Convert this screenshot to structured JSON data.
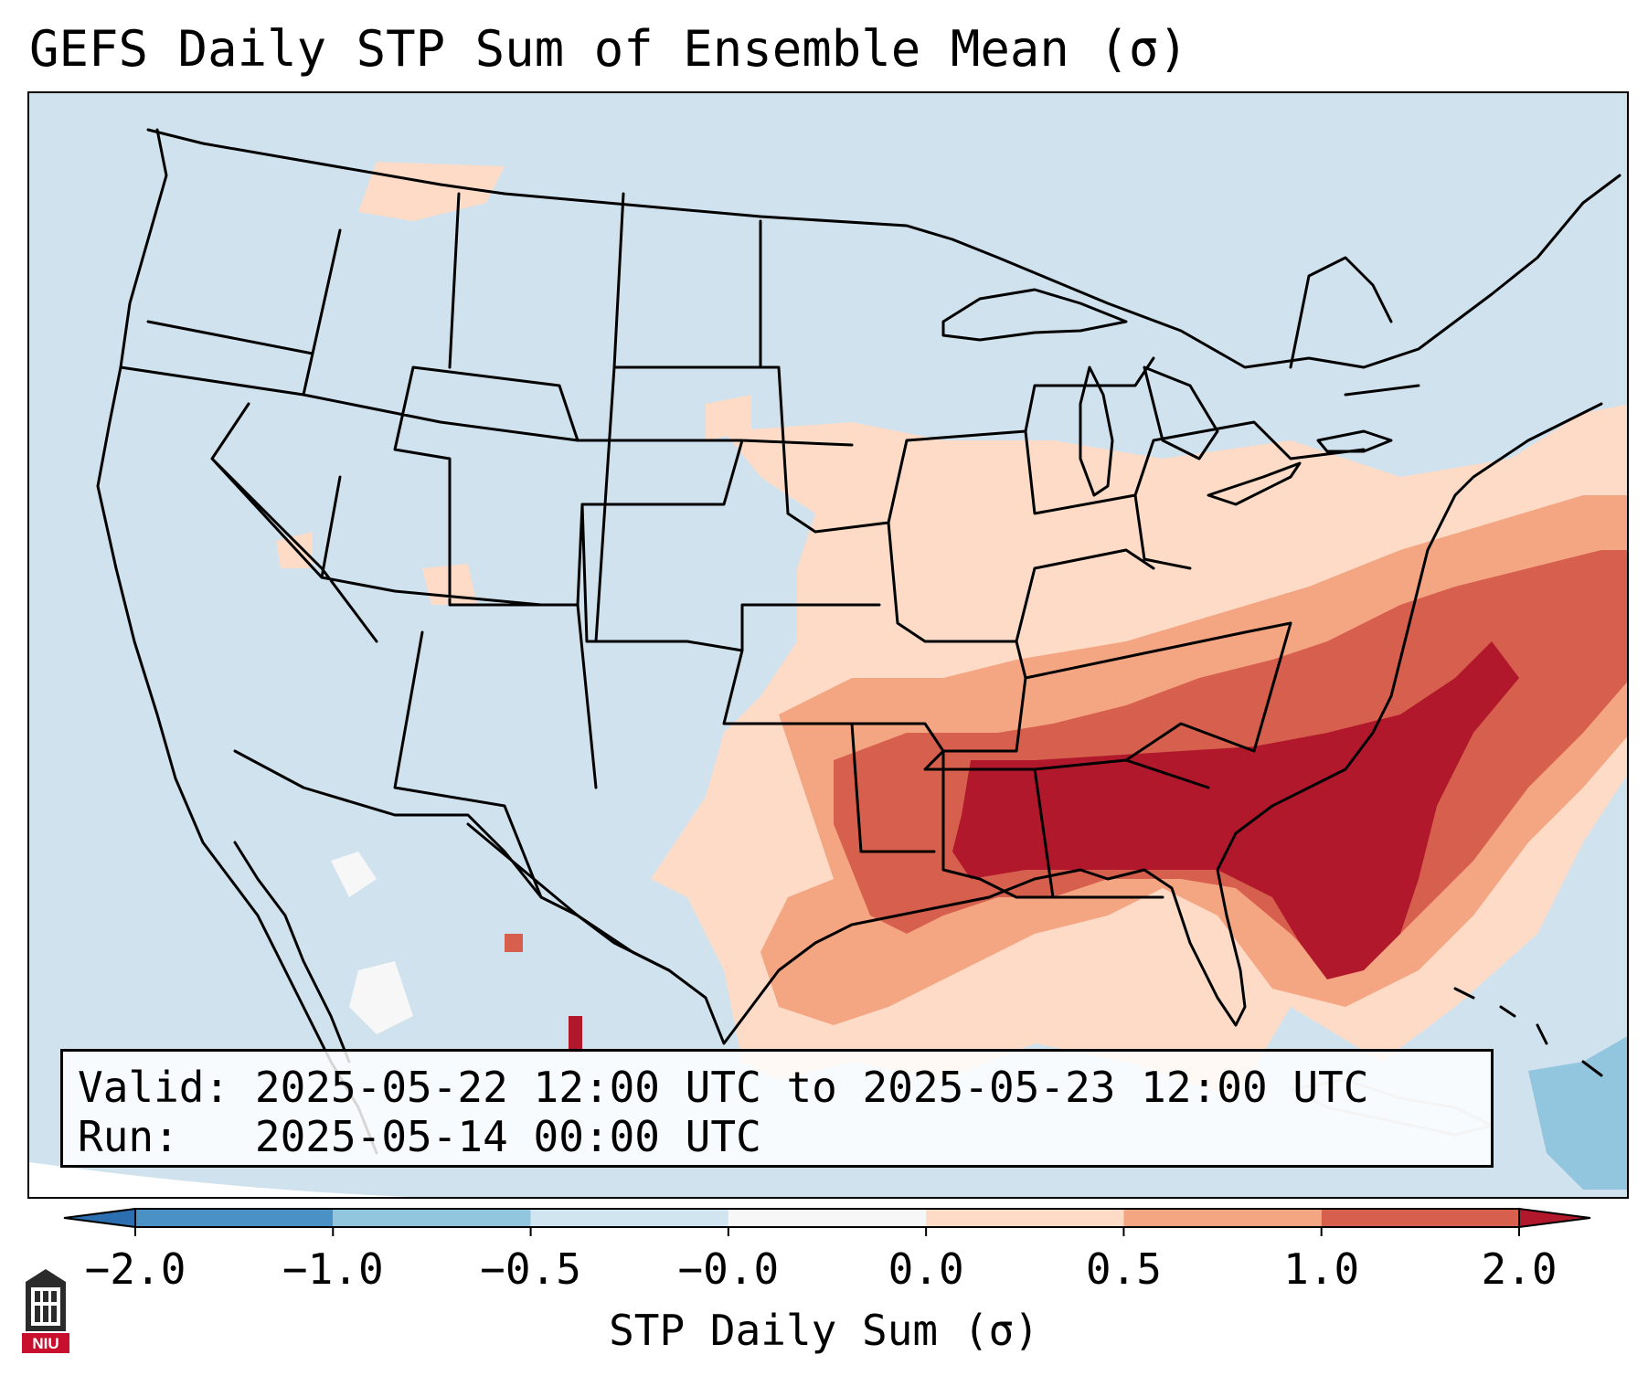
{
  "title": "GEFS Daily STP Sum of Ensemble Mean (σ)",
  "info": {
    "valid_label": "Valid:",
    "valid_value": "2025-05-22 12:00 UTC to 2025-05-23 12:00 UTC",
    "run_label": "Run:",
    "run_value": "2025-05-14 00:00 UTC"
  },
  "colorbar": {
    "label": "STP Daily Sum (σ)",
    "ticks": [
      "−2.0",
      "−1.0",
      "−0.5",
      "−0.0",
      "0.0",
      "0.5",
      "1.0",
      "2.0"
    ],
    "bins": [
      {
        "range": "< -2.0",
        "color": "#2b6fb0"
      },
      {
        "range": "-2.0 to -1.0",
        "color": "#4a92c6"
      },
      {
        "range": "-1.0 to -0.5",
        "color": "#92c5de"
      },
      {
        "range": "-0.5 to -0.0",
        "color": "#d1e5f0"
      },
      {
        "range": "-0.0 to 0.0",
        "color": "#f7f7f7"
      },
      {
        "range": "0.0 to 0.5",
        "color": "#fddbc7"
      },
      {
        "range": "0.5 to 1.0",
        "color": "#f4a582"
      },
      {
        "range": "1.0 to 2.0",
        "color": "#d6604d"
      },
      {
        "range": "> 2.0",
        "color": "#b2182b"
      }
    ],
    "extend": "both"
  },
  "map": {
    "region": "CONUS",
    "projection": "Lambert Conformal",
    "background_color": "#d0e2ee",
    "boundary_color": "#000000",
    "features": [
      "state borders",
      "country borders",
      "coastlines",
      "Great Lakes"
    ],
    "shading_summary": [
      {
        "region": "Mississippi / Alabama / Georgia / South Carolina / North Carolina",
        "category": "> 2.0"
      },
      {
        "region": "Tennessee / Arkansas / Louisiana / offshore Atlantic",
        "category": "1.0 to 2.0"
      },
      {
        "region": "Gulf of Mexico coast / Kentucky / Virginia / Missouri",
        "category": "0.5 to 1.0"
      },
      {
        "region": "Ohio Valley / Mid-Atlantic / Texas / Oklahoma",
        "category": "0.0 to 0.5"
      },
      {
        "region": "Caribbean / Bahamas",
        "category": "-1.0 to -0.5"
      }
    ]
  },
  "logo": {
    "text": "NIU"
  }
}
